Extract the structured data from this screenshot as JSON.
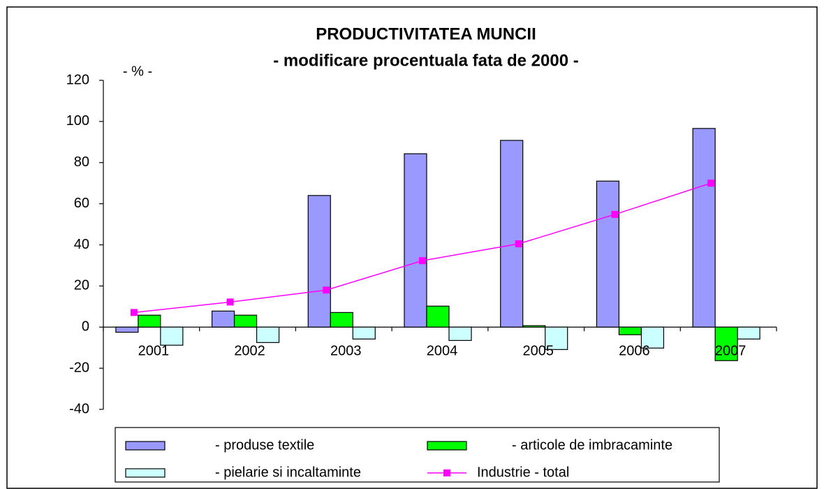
{
  "chart_data": {
    "type": "bar",
    "title": "PRODUCTIVITATEA MUNCII",
    "subtitle": "- modificare procentuala fata de 2000 -",
    "y_label": "- % -",
    "categories": [
      "2001",
      "2002",
      "2003",
      "2004",
      "2005",
      "2006",
      "2007"
    ],
    "series": [
      {
        "name": "- produse textile",
        "color": "#9999ff",
        "values": [
          -2.5,
          7.8,
          64,
          84.3,
          90.8,
          71,
          96.6
        ]
      },
      {
        "name": "- articole de imbracaminte",
        "color": "#00ff00",
        "values": [
          5.8,
          5.8,
          7.1,
          10.2,
          0.7,
          -3.7,
          -16.3
        ]
      },
      {
        "name": "- pielarie si incaltaminte",
        "color": "#ccffff",
        "values": [
          -8.8,
          -7.5,
          -5.8,
          -6.5,
          -10.9,
          -10.2,
          -5.8
        ]
      },
      {
        "name": "Industrie - total",
        "color": "#ff00ff",
        "type": "line",
        "values": [
          7.1,
          12.2,
          18,
          32.3,
          40.5,
          54.8,
          70
        ]
      }
    ],
    "ylim": [
      -40,
      120
    ],
    "yticks": [
      -40,
      -20,
      0,
      20,
      40,
      60,
      80,
      100,
      120
    ],
    "grid": false,
    "legend": "bottom"
  }
}
